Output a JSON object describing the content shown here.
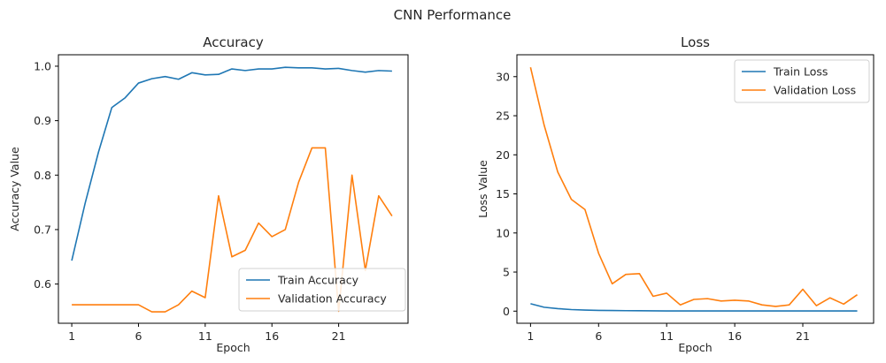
{
  "figure": {
    "suptitle": "CNN Performance"
  },
  "colors": {
    "train": "#1f77b4",
    "validation": "#ff7f0e"
  },
  "chart_data": [
    {
      "type": "line",
      "title": "Accuracy",
      "xlabel": "Epoch",
      "ylabel": "Accuracy Value",
      "x": [
        1,
        2,
        3,
        4,
        5,
        6,
        7,
        8,
        9,
        10,
        11,
        12,
        13,
        14,
        15,
        16,
        17,
        18,
        19,
        20,
        21,
        22,
        23,
        24,
        25
      ],
      "xticks": [
        1,
        6,
        11,
        16,
        21
      ],
      "yticks": [
        0.6,
        0.7,
        0.8,
        0.9,
        1.0
      ],
      "ytick_labels": [
        "0.6",
        "0.7",
        "0.8",
        "0.9",
        "1.0"
      ],
      "xlim": [
        0,
        26.2
      ],
      "ylim": [
        0.528,
        1.021
      ],
      "grid": false,
      "legend_position": "lower-right",
      "series": [
        {
          "name": "Train Accuracy",
          "color": "#1f77b4",
          "values": [
            0.643,
            0.748,
            0.842,
            0.924,
            0.942,
            0.969,
            0.977,
            0.981,
            0.976,
            0.988,
            0.984,
            0.985,
            0.995,
            0.992,
            0.995,
            0.995,
            0.998,
            0.997,
            0.997,
            0.995,
            0.996,
            0.992,
            0.989,
            0.992,
            0.991
          ]
        },
        {
          "name": "Validation Accuracy",
          "color": "#ff7f0e",
          "values": [
            0.562,
            0.562,
            0.562,
            0.562,
            0.562,
            0.562,
            0.549,
            0.549,
            0.562,
            0.587,
            0.575,
            0.762,
            0.65,
            0.662,
            0.712,
            0.687,
            0.7,
            0.787,
            0.85,
            0.85,
            0.55,
            0.8,
            0.625,
            0.762,
            0.725
          ]
        }
      ]
    },
    {
      "type": "line",
      "title": "Loss",
      "xlabel": "Epoch",
      "ylabel": "Loss Value",
      "x": [
        1,
        2,
        3,
        4,
        5,
        6,
        7,
        8,
        9,
        10,
        11,
        12,
        13,
        14,
        15,
        16,
        17,
        18,
        19,
        20,
        21,
        22,
        23,
        24,
        25
      ],
      "xticks": [
        1,
        6,
        11,
        16,
        21
      ],
      "yticks": [
        0,
        5,
        10,
        15,
        20,
        25,
        30
      ],
      "ytick_labels": [
        "0",
        "5",
        "10",
        "15",
        "20",
        "25",
        "30"
      ],
      "xlim": [
        0,
        26.2
      ],
      "ylim": [
        -1.55,
        32.8
      ],
      "grid": false,
      "legend_position": "upper-right",
      "series": [
        {
          "name": "Train Loss",
          "color": "#1f77b4",
          "values": [
            0.95,
            0.5,
            0.32,
            0.2,
            0.14,
            0.1,
            0.08,
            0.06,
            0.05,
            0.04,
            0.03,
            0.03,
            0.03,
            0.02,
            0.02,
            0.02,
            0.02,
            0.02,
            0.02,
            0.02,
            0.02,
            0.02,
            0.02,
            0.02,
            0.02
          ]
        },
        {
          "name": "Validation Loss",
          "color": "#ff7f0e",
          "values": [
            31.2,
            23.8,
            17.8,
            14.3,
            13.0,
            7.4,
            3.5,
            4.7,
            4.8,
            1.9,
            2.3,
            0.8,
            1.5,
            1.6,
            1.3,
            1.4,
            1.3,
            0.8,
            0.6,
            0.8,
            2.8,
            0.7,
            1.7,
            0.9,
            2.1
          ]
        }
      ]
    }
  ]
}
